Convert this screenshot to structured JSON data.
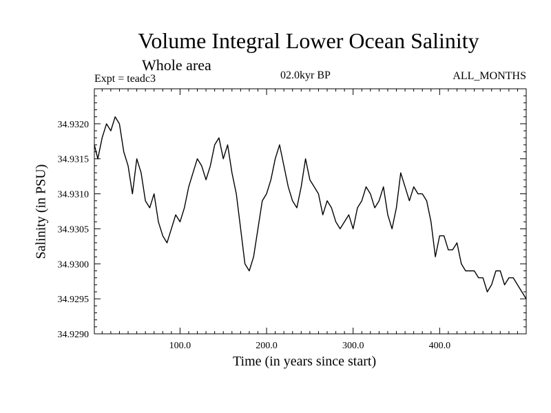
{
  "chart_data": {
    "type": "line",
    "title": "Volume Integral Lower Ocean Salinity",
    "subtitle": "Whole area",
    "experiment": "Expt = teadc3",
    "period": "02.0kyr BP",
    "months": "ALL_MONTHS",
    "xlabel": "Time (in years since start)",
    "ylabel": "Salinity (in PSU)",
    "xlim": [
      1,
      500
    ],
    "ylim": [
      34.929,
      34.9325
    ],
    "xticks": [
      100,
      200,
      300,
      400
    ],
    "xtick_labels": [
      "100.0",
      "200.0",
      "300.0",
      "400.0"
    ],
    "yticks": [
      34.929,
      34.9295,
      34.93,
      34.9305,
      34.931,
      34.9315,
      34.932
    ],
    "ytick_labels": [
      "34.9290",
      "34.9295",
      "34.9300",
      "34.9305",
      "34.9310",
      "34.9315",
      "34.9320"
    ],
    "grid": false,
    "series": [
      {
        "name": "Salinity",
        "x": [
          1,
          5,
          10,
          15,
          20,
          25,
          30,
          35,
          40,
          45,
          50,
          55,
          60,
          65,
          70,
          75,
          80,
          85,
          90,
          95,
          100,
          105,
          110,
          115,
          120,
          125,
          130,
          135,
          140,
          145,
          150,
          155,
          160,
          165,
          170,
          175,
          180,
          185,
          190,
          195,
          200,
          205,
          210,
          215,
          220,
          225,
          230,
          235,
          240,
          245,
          250,
          255,
          260,
          265,
          270,
          275,
          280,
          285,
          290,
          295,
          300,
          305,
          310,
          315,
          320,
          325,
          330,
          335,
          340,
          345,
          350,
          355,
          360,
          365,
          370,
          375,
          380,
          385,
          390,
          395,
          400,
          405,
          410,
          415,
          420,
          425,
          430,
          435,
          440,
          445,
          450,
          455,
          460,
          465,
          470,
          475,
          480,
          485,
          490,
          495,
          500
        ],
        "values": [
          34.9317,
          34.9315,
          34.9318,
          34.932,
          34.9319,
          34.9321,
          34.932,
          34.9316,
          34.9314,
          34.931,
          34.9315,
          34.9313,
          34.9309,
          34.9308,
          34.931,
          34.9306,
          34.9304,
          34.9303,
          34.9305,
          34.9307,
          34.9306,
          34.9308,
          34.9311,
          34.9313,
          34.9315,
          34.9314,
          34.9312,
          34.9314,
          34.9317,
          34.9318,
          34.9315,
          34.9317,
          34.9313,
          34.931,
          34.9305,
          34.93,
          34.9299,
          34.9301,
          34.9305,
          34.9309,
          34.931,
          34.9312,
          34.9315,
          34.9317,
          34.9314,
          34.9311,
          34.9309,
          34.9308,
          34.9311,
          34.9315,
          34.9312,
          34.9311,
          34.931,
          34.9307,
          34.9309,
          34.9308,
          34.9306,
          34.9305,
          34.9306,
          34.9307,
          34.9305,
          34.9308,
          34.9309,
          34.9311,
          34.931,
          34.9308,
          34.9309,
          34.9311,
          34.9307,
          34.9305,
          34.9308,
          34.9313,
          34.9311,
          34.9309,
          34.9311,
          34.931,
          34.931,
          34.9309,
          34.9306,
          34.9301,
          34.9304,
          34.9304,
          34.9302,
          34.9302,
          34.9303,
          34.93,
          34.9299,
          34.9299,
          34.9299,
          34.9298,
          34.9298,
          34.9296,
          34.9297,
          34.9299,
          34.9299,
          34.9297,
          34.9298,
          34.9298,
          34.9297,
          34.9296,
          34.9295
        ]
      }
    ]
  }
}
